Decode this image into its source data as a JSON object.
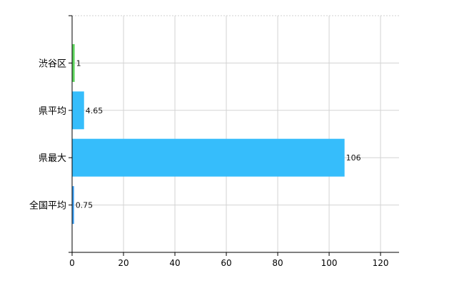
{
  "chart_data": {
    "type": "bar",
    "orientation": "horizontal",
    "categories": [
      "渋谷区",
      "県平均",
      "県最大",
      "全国平均"
    ],
    "values": [
      1,
      4.65,
      106,
      0.75
    ],
    "data_labels": [
      "1",
      "4.65",
      "106",
      "0.75"
    ],
    "colors": [
      "#5dd35d",
      "#36bdfb",
      "#36bdfb",
      "#3a9cf0"
    ],
    "xlim": [
      0,
      127.2
    ],
    "xticks": [
      0,
      20,
      40,
      60,
      80,
      100,
      120
    ],
    "xtick_labels": [
      "0",
      "20",
      "40",
      "60",
      "80",
      "100",
      "120"
    ],
    "grid": true,
    "title": "",
    "xlabel": "",
    "ylabel": ""
  }
}
